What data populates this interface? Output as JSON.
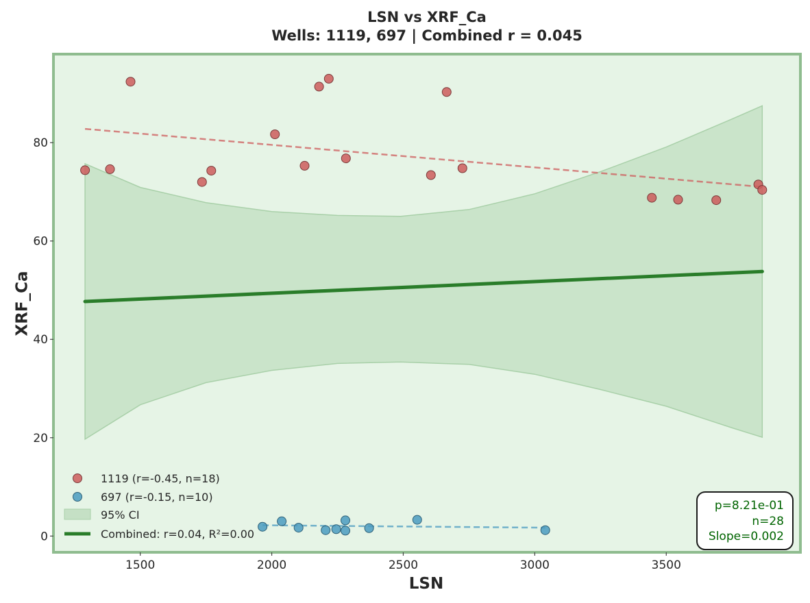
{
  "chart_data": {
    "type": "scatter",
    "title": "LSN vs XRF_Ca",
    "subtitle": "Wells: 1119, 697 | Combined r = 0.045",
    "xlabel": "LSN",
    "ylabel": "XRF_Ca",
    "xlim": [
      1170,
      4010
    ],
    "ylim": [
      -3.3,
      98
    ],
    "xticks": [
      "1500",
      "2000",
      "2500",
      "3000",
      "3500"
    ],
    "yticks": [
      "0",
      "20",
      "40",
      "60",
      "80"
    ],
    "grid": false,
    "legend_position": "lower-left",
    "colors": {
      "background": "#e6f4e6",
      "frame": "#8fbc8f",
      "series_1119": "#cd5c5c",
      "series_697": "#4a9bc0",
      "combined": "#2a7d2a",
      "ci_fill": "#a9d0a9",
      "stats_text": "#006400"
    },
    "series": [
      {
        "name": "1119 (r=-0.45, n=18)",
        "x": [
          1290,
          1385,
          1463,
          1735,
          1770,
          2012,
          2125,
          2180,
          2217,
          2282,
          2605,
          2665,
          2725,
          3445,
          3545,
          3690,
          3850,
          3865
        ],
        "y": [
          74.4,
          74.6,
          92.4,
          72.0,
          74.3,
          81.7,
          75.3,
          91.4,
          93.0,
          76.8,
          73.4,
          90.3,
          74.8,
          68.8,
          68.4,
          68.3,
          71.5,
          70.4
        ],
        "trend": {
          "x": [
            1290,
            3865
          ],
          "y": [
            82.8,
            71.0
          ]
        }
      },
      {
        "name": "697 (r=-0.15, n=10)",
        "x": [
          1965,
          2038,
          2102,
          2205,
          2245,
          2280,
          2280,
          2370,
          2553,
          3040
        ],
        "y": [
          1.9,
          3.0,
          1.7,
          1.2,
          1.4,
          3.2,
          1.1,
          1.6,
          3.3,
          1.2
        ],
        "trend": {
          "x": [
            1965,
            3040
          ],
          "y": [
            2.2,
            1.7
          ]
        }
      }
    ],
    "combined_fit": {
      "name": "Combined: r=0.04, R²=0.00",
      "x": [
        1290,
        3865
      ],
      "y": [
        47.7,
        53.8
      ]
    },
    "confidence_band": {
      "name": "95% CI",
      "x": [
        1290,
        1500,
        1750,
        2000,
        2250,
        2490,
        2750,
        3000,
        3250,
        3500,
        3750,
        3865
      ],
      "upper": [
        75.7,
        70.9,
        67.8,
        66.0,
        65.2,
        65.0,
        66.4,
        69.6,
        74.1,
        79.1,
        84.8,
        87.5
      ],
      "lower": [
        19.7,
        26.7,
        31.2,
        33.7,
        35.1,
        35.4,
        34.9,
        32.9,
        29.8,
        26.4,
        22.0,
        20.1
      ]
    },
    "legend": [
      "1119 (r=-0.45, n=18)",
      "697 (r=-0.15, n=10)",
      "95% CI",
      "Combined: r=0.04, R²=0.00"
    ],
    "stats_box": [
      "p=8.21e-01",
      "n=28",
      "Slope=0.002"
    ]
  }
}
